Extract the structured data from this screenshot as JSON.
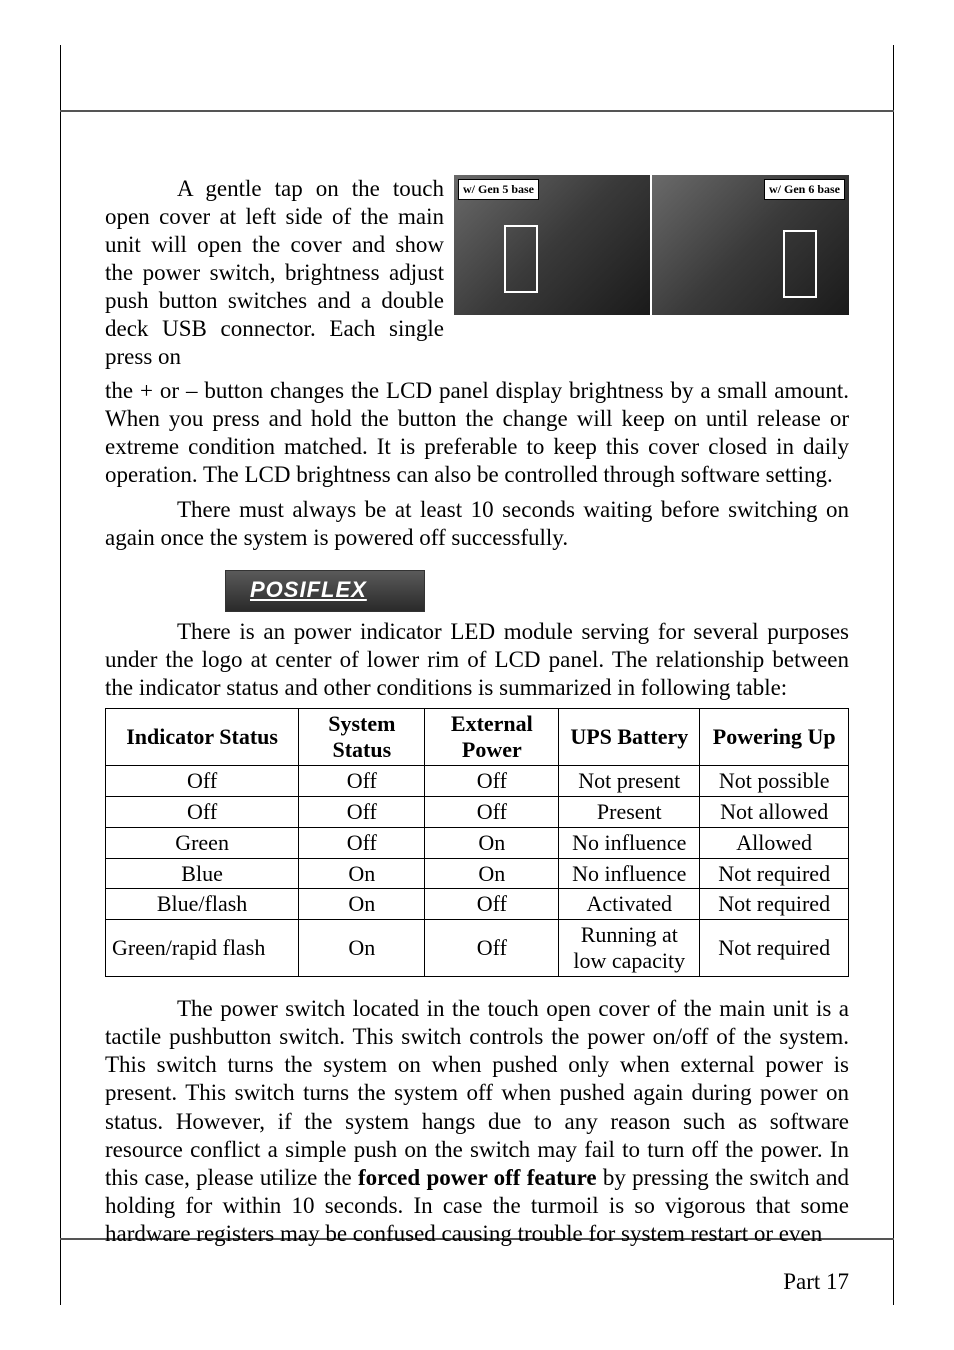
{
  "figure": {
    "left_label": "w/ Gen 5 base",
    "right_label": "w/ Gen 6 base"
  },
  "para1a": "A gentle tap on the touch open cover at left side of the main unit will open the cover and show the power switch, brightness adjust push button switches and a double deck USB connector. Each single press on",
  "para1b": "the + or – button changes the LCD panel display brightness by a small amount. When you press and hold the button the change will keep on until release or extreme condition matched. It is preferable to keep this cover closed in daily operation. The LCD brightness can also be controlled through software setting.",
  "para2": "There must always be at least 10 seconds waiting before switching on again once the system is powered off successfully.",
  "logo": "POSIFLEX",
  "para3": "There is an power indicator LED module serving for several purposes under the logo at center of lower rim of LCD panel. The relationship between the indicator status and other conditions is summarized in following table:",
  "table": {
    "headers": [
      "Indicator Status",
      "System Status",
      "External Power",
      "UPS Battery",
      "Powering Up"
    ],
    "rows": [
      [
        "Off",
        "Off",
        "Off",
        "Not present",
        "Not possible"
      ],
      [
        "Off",
        "Off",
        "Off",
        "Present",
        "Not allowed"
      ],
      [
        "Green",
        "Off",
        "On",
        "No influence",
        "Allowed"
      ],
      [
        "Blue",
        "On",
        "On",
        "No influence",
        "Not required"
      ],
      [
        "Blue/flash",
        "On",
        "Off",
        "Activated",
        "Not required"
      ],
      [
        "Green/rapid flash",
        "On",
        "Off",
        "Running at low capacity",
        "Not required"
      ]
    ],
    "col_widths": [
      "26%",
      "17%",
      "18%",
      "19%",
      "20%"
    ]
  },
  "para4_pre": "The power switch located in the touch open cover of the main unit is a tactile pushbutton switch. This switch controls the power on/off of the system. This switch turns the system on when pushed only when external power is present. This switch turns the system off when pushed again during power on status. However, if the system hangs due to any reason such as software resource conflict a simple push on the switch may fail to turn off the power. In this case, please utilize the ",
  "para4_bold": "forced power off feature",
  "para4_post": " by pressing the switch and holding for within 10 seconds. In case the turmoil is so vigorous that some hardware registers may be confused causing trouble for system restart or even",
  "page_number": "Part 17"
}
